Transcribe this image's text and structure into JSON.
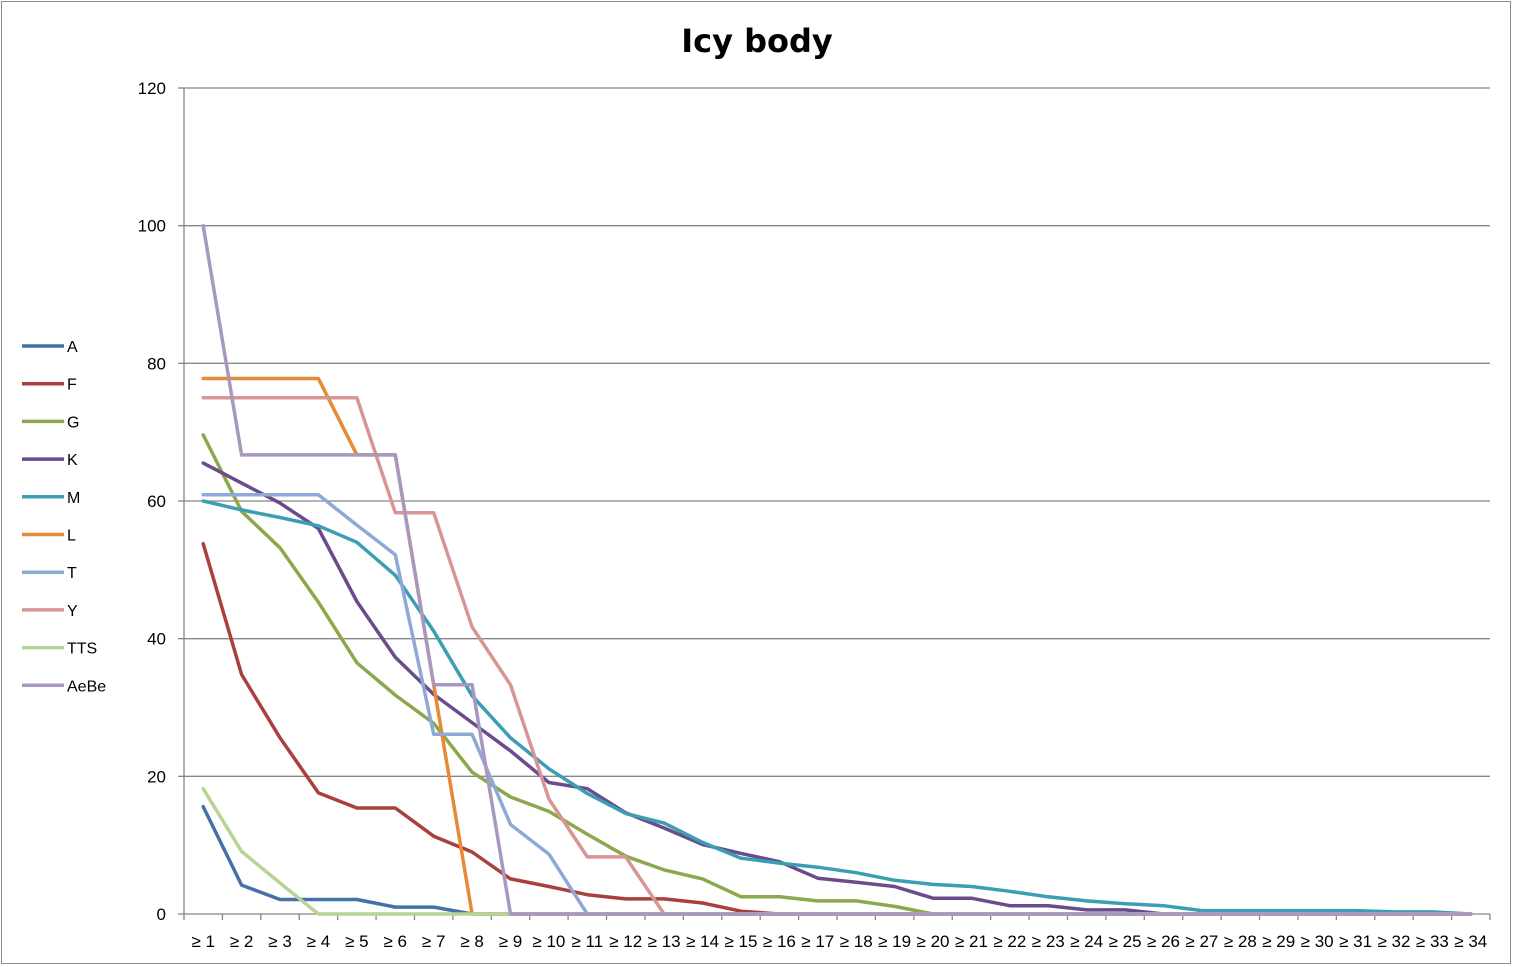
{
  "chart_data": {
    "type": "line",
    "title": "Icy body",
    "xlabel": "",
    "ylabel": "",
    "ylim": [
      0,
      120
    ],
    "yticks": [
      0,
      20,
      40,
      60,
      80,
      100,
      120
    ],
    "grid": true,
    "legend_position": "left",
    "categories": [
      "≥ 1",
      "≥ 2",
      "≥ 3",
      "≥ 4",
      "≥ 5",
      "≥ 6",
      "≥ 7",
      "≥ 8",
      "≥ 9",
      "≥ 10",
      "≥ 11",
      "≥ 12",
      "≥ 13",
      "≥ 14",
      "≥ 15",
      "≥ 16",
      "≥ 17",
      "≥ 18",
      "≥ 19",
      "≥ 20",
      "≥ 21",
      "≥ 22",
      "≥ 23",
      "≥ 24",
      "≥ 25",
      "≥ 26",
      "≥ 27",
      "≥ 28",
      "≥ 29",
      "≥ 30",
      "≥ 31",
      "≥ 32",
      "≥ 33",
      "≥ 34"
    ],
    "series": [
      {
        "name": "A",
        "color": "#4472a8",
        "values": [
          15.6,
          4.2,
          2.1,
          2.1,
          2.1,
          1.0,
          1.0,
          0,
          0,
          0,
          0,
          0,
          0,
          0,
          0,
          0,
          0,
          0,
          0,
          0,
          0,
          0,
          0,
          0,
          0,
          0,
          0,
          0,
          0,
          0,
          0,
          0,
          0,
          0
        ]
      },
      {
        "name": "F",
        "color": "#a9403d",
        "values": [
          53.8,
          34.8,
          25.6,
          17.6,
          15.4,
          15.4,
          11.3,
          9.0,
          5.1,
          4.0,
          2.8,
          2.2,
          2.2,
          1.6,
          0.4,
          0,
          0,
          0,
          0,
          0,
          0,
          0,
          0,
          0,
          0,
          0,
          0,
          0,
          0,
          0,
          0,
          0,
          0,
          0
        ]
      },
      {
        "name": "G",
        "color": "#8ca84c",
        "values": [
          69.6,
          58.5,
          53.2,
          45.3,
          36.5,
          31.8,
          27.7,
          20.6,
          17.0,
          14.9,
          11.6,
          8.4,
          6.4,
          5.1,
          2.5,
          2.5,
          1.9,
          1.9,
          1.1,
          0,
          0,
          0,
          0,
          0,
          0,
          0,
          0,
          0,
          0,
          0,
          0,
          0,
          0,
          0
        ]
      },
      {
        "name": "K",
        "color": "#6a4c8c",
        "values": [
          65.5,
          62.6,
          59.7,
          56.0,
          45.4,
          37.3,
          31.9,
          27.8,
          23.7,
          19.1,
          18.2,
          14.7,
          12.5,
          10.1,
          8.8,
          7.6,
          5.2,
          4.6,
          4.0,
          2.3,
          2.3,
          1.2,
          1.2,
          0.6,
          0.6,
          0,
          0,
          0,
          0,
          0,
          0,
          0,
          0,
          0
        ]
      },
      {
        "name": "M",
        "color": "#3b9eb2",
        "values": [
          60.0,
          58.7,
          57.6,
          56.4,
          54.0,
          49.2,
          41.1,
          31.7,
          25.6,
          21.1,
          17.5,
          14.6,
          13.2,
          10.4,
          8.1,
          7.4,
          6.8,
          6.0,
          4.9,
          4.3,
          4.0,
          3.3,
          2.5,
          1.9,
          1.5,
          1.2,
          0.5,
          0.5,
          0.5,
          0.5,
          0.5,
          0.3,
          0.3,
          0
        ]
      },
      {
        "name": "L",
        "color": "#e58a36",
        "values": [
          77.8,
          77.8,
          77.8,
          77.8,
          66.7,
          66.7,
          33.3,
          0,
          0,
          0,
          0,
          0,
          0,
          0,
          0,
          0,
          0,
          0,
          0,
          0,
          0,
          0,
          0,
          0,
          0,
          0,
          0,
          0,
          0,
          0,
          0,
          0,
          0,
          0
        ]
      },
      {
        "name": "T",
        "color": "#8ea9d6",
        "values": [
          60.9,
          60.9,
          60.9,
          60.9,
          56.5,
          52.2,
          26.1,
          26.1,
          13.0,
          8.7,
          0,
          0,
          0,
          0,
          0,
          0,
          0,
          0,
          0,
          0,
          0,
          0,
          0,
          0,
          0,
          0,
          0,
          0,
          0,
          0,
          0,
          0,
          0,
          0
        ]
      },
      {
        "name": "Y",
        "color": "#d99593",
        "values": [
          75.0,
          75.0,
          75.0,
          75.0,
          75.0,
          58.3,
          58.3,
          41.7,
          33.3,
          16.7,
          8.3,
          8.3,
          0,
          0,
          0,
          0,
          0,
          0,
          0,
          0,
          0,
          0,
          0,
          0,
          0,
          0,
          0,
          0,
          0,
          0,
          0,
          0,
          0,
          0
        ]
      },
      {
        "name": "TTS",
        "color": "#b6d494",
        "values": [
          18.2,
          9.1,
          4.5,
          0,
          0,
          0,
          0,
          0,
          0,
          0,
          0,
          0,
          0,
          0,
          0,
          0,
          0,
          0,
          0,
          0,
          0,
          0,
          0,
          0,
          0,
          0,
          0,
          0,
          0,
          0,
          0,
          0,
          0,
          0
        ]
      },
      {
        "name": "AeBe",
        "color": "#a898c0",
        "values": [
          100.0,
          66.7,
          66.7,
          66.7,
          66.7,
          66.7,
          33.3,
          33.3,
          0,
          0,
          0,
          0,
          0,
          0,
          0,
          0,
          0,
          0,
          0,
          0,
          0,
          0,
          0,
          0,
          0,
          0,
          0,
          0,
          0,
          0,
          0,
          0,
          0,
          0
        ]
      }
    ]
  }
}
